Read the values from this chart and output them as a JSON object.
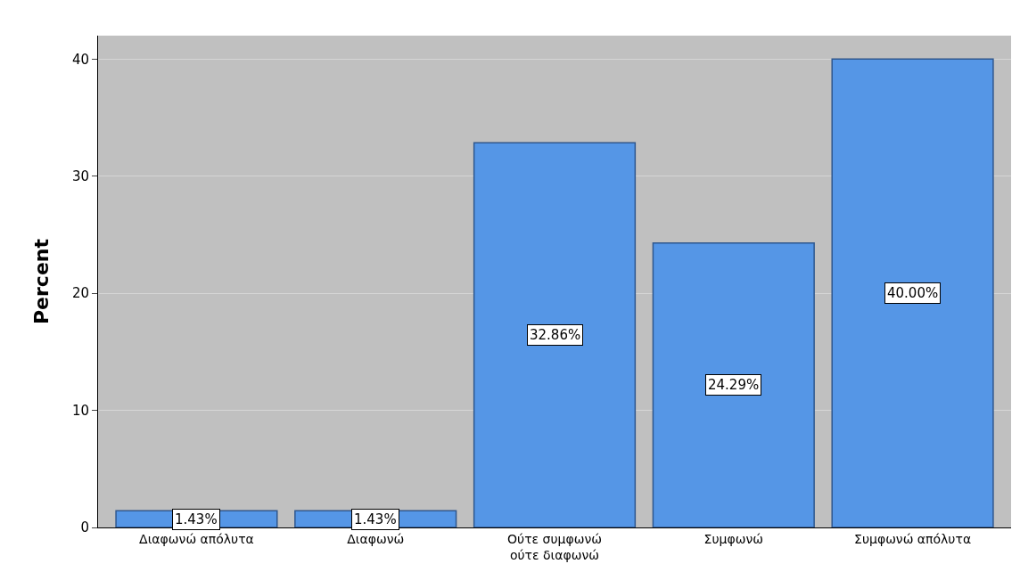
{
  "chart_data": {
    "type": "bar",
    "ylabel": "Percent",
    "categories": [
      "Διαφωνώ απόλυτα",
      "Διαφωνώ",
      "Ούτε συμφωνώ\nούτε διαφωνώ",
      "Συμφωνώ",
      "Συμφωνώ απόλυτα"
    ],
    "values": [
      1.43,
      1.43,
      32.86,
      24.29,
      40.0
    ],
    "value_labels": [
      "1.43%",
      "1.43%",
      "32.86%",
      "24.29%",
      "40.00%"
    ],
    "color": "#5596e6",
    "ylim": [
      0,
      42
    ],
    "yticks": [
      0,
      10,
      20,
      30,
      40
    ],
    "grid": "y"
  }
}
